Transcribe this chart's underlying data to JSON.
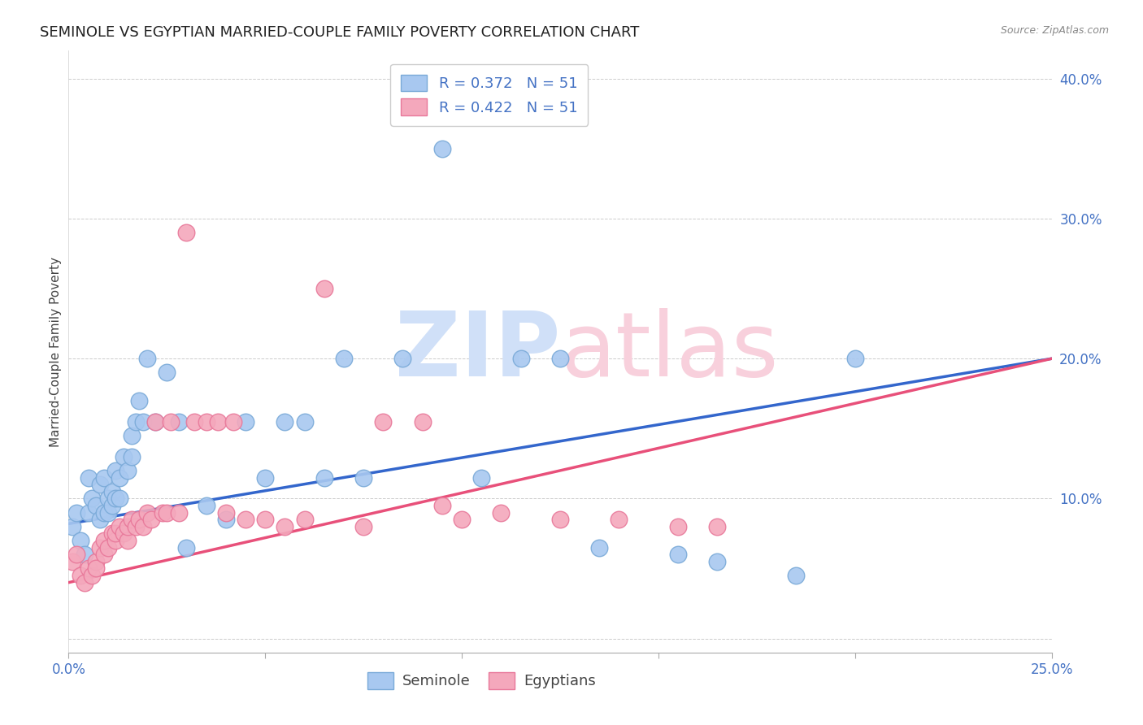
{
  "title": "SEMINOLE VS EGYPTIAN MARRIED-COUPLE FAMILY POVERTY CORRELATION CHART",
  "source": "Source: ZipAtlas.com",
  "ylabel": "Married-Couple Family Poverty",
  "r_seminole": 0.372,
  "n_seminole": 51,
  "r_egyptian": 0.422,
  "n_egyptian": 51,
  "xlim": [
    0.0,
    0.25
  ],
  "ylim": [
    0.0,
    0.42
  ],
  "seminole_color": "#A8C8F0",
  "egyptian_color": "#F4A8BC",
  "seminole_edge": "#7AAAD8",
  "egyptian_edge": "#E8789A",
  "trend_seminole_color": "#3366CC",
  "trend_egyptian_color": "#E8507A",
  "background_color": "#ffffff",
  "watermark_zip_color": "#D0E0F8",
  "watermark_atlas_color": "#F8D0DC",
  "grid_color": "#CCCCCC",
  "title_fontsize": 13,
  "axis_label_fontsize": 11,
  "tick_fontsize": 12,
  "legend_fontsize": 13,
  "blue_text_color": "#4472C4",
  "pink_text_color": "#E87090",
  "trend_blue_start_y": 0.082,
  "trend_blue_end_y": 0.2,
  "trend_pink_start_y": 0.04,
  "trend_pink_end_y": 0.2,
  "seminole_x": [
    0.001,
    0.002,
    0.003,
    0.004,
    0.005,
    0.005,
    0.006,
    0.007,
    0.008,
    0.008,
    0.009,
    0.009,
    0.01,
    0.01,
    0.011,
    0.011,
    0.012,
    0.012,
    0.013,
    0.013,
    0.014,
    0.015,
    0.016,
    0.016,
    0.017,
    0.018,
    0.019,
    0.02,
    0.022,
    0.025,
    0.028,
    0.03,
    0.035,
    0.04,
    0.045,
    0.05,
    0.055,
    0.06,
    0.065,
    0.07,
    0.075,
    0.085,
    0.095,
    0.105,
    0.115,
    0.125,
    0.135,
    0.155,
    0.165,
    0.185,
    0.2
  ],
  "seminole_y": [
    0.08,
    0.09,
    0.07,
    0.06,
    0.115,
    0.09,
    0.1,
    0.095,
    0.11,
    0.085,
    0.09,
    0.115,
    0.1,
    0.09,
    0.095,
    0.105,
    0.1,
    0.12,
    0.1,
    0.115,
    0.13,
    0.12,
    0.145,
    0.13,
    0.155,
    0.17,
    0.155,
    0.2,
    0.155,
    0.19,
    0.155,
    0.065,
    0.095,
    0.085,
    0.155,
    0.115,
    0.155,
    0.155,
    0.115,
    0.2,
    0.115,
    0.2,
    0.35,
    0.115,
    0.2,
    0.2,
    0.065,
    0.06,
    0.055,
    0.045,
    0.2
  ],
  "egyptian_x": [
    0.001,
    0.002,
    0.003,
    0.004,
    0.005,
    0.006,
    0.007,
    0.007,
    0.008,
    0.009,
    0.009,
    0.01,
    0.011,
    0.012,
    0.012,
    0.013,
    0.014,
    0.015,
    0.015,
    0.016,
    0.017,
    0.018,
    0.019,
    0.02,
    0.021,
    0.022,
    0.024,
    0.025,
    0.026,
    0.028,
    0.03,
    0.032,
    0.035,
    0.038,
    0.04,
    0.042,
    0.045,
    0.05,
    0.055,
    0.06,
    0.065,
    0.075,
    0.08,
    0.09,
    0.095,
    0.1,
    0.11,
    0.125,
    0.14,
    0.155,
    0.165
  ],
  "egyptian_y": [
    0.055,
    0.06,
    0.045,
    0.04,
    0.05,
    0.045,
    0.055,
    0.05,
    0.065,
    0.06,
    0.07,
    0.065,
    0.075,
    0.07,
    0.075,
    0.08,
    0.075,
    0.07,
    0.08,
    0.085,
    0.08,
    0.085,
    0.08,
    0.09,
    0.085,
    0.155,
    0.09,
    0.09,
    0.155,
    0.09,
    0.29,
    0.155,
    0.155,
    0.155,
    0.09,
    0.155,
    0.085,
    0.085,
    0.08,
    0.085,
    0.25,
    0.08,
    0.155,
    0.155,
    0.095,
    0.085,
    0.09,
    0.085,
    0.085,
    0.08,
    0.08
  ]
}
